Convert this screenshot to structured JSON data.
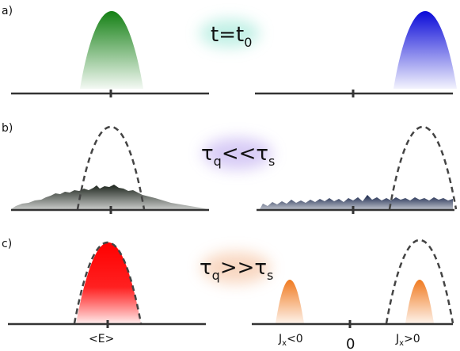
{
  "panels": [
    {
      "label": "a)",
      "condition": {
        "base": "t=t",
        "sub": "0",
        "tail": ""
      },
      "condition_glow": "#a8eadb"
    },
    {
      "label": "b)",
      "condition": {
        "base": "τ",
        "sub": "q",
        "tail": "<<τ",
        "sub2": "s"
      },
      "condition_glow": "#c7b6f2"
    },
    {
      "label": "c)",
      "condition": {
        "base": "τ",
        "sub": "q",
        "tail": ">>τ",
        "sub2": "s"
      },
      "condition_glow": "#f6c7a8"
    }
  ],
  "axis_labels": {
    "mean_energy": "<E>",
    "zero": "0",
    "left_current": {
      "base": "J",
      "sub": "x",
      "tail": "<0"
    },
    "right_current": {
      "base": "J",
      "sub": "x",
      "tail": ">0"
    }
  },
  "colors": {
    "left_initial": "#1a8a1a",
    "right_initial": "#1010d0",
    "left_noisy": "#1e2a1e",
    "right_noisy": "#1a2a50",
    "left_final": "#ff0000",
    "small_peaks": "#f07a20",
    "axis": "#333333",
    "dashed": "#444444"
  }
}
